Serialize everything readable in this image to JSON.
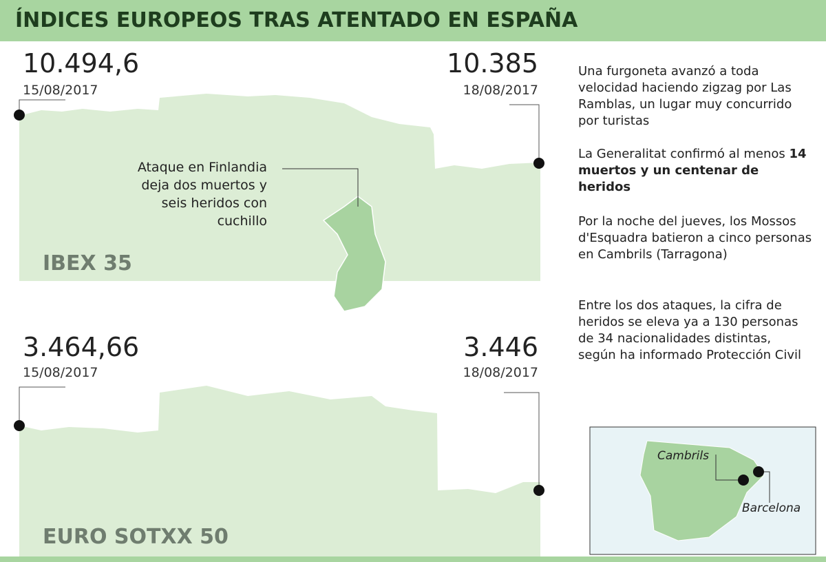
{
  "header": {
    "title": "ÍNDICES EUROPEOS TRAS ATENTADO EN ESPAÑA"
  },
  "panels": [
    {
      "name": "IBEX 35",
      "start_value": "10.494,6",
      "start_date": "15/08/2017",
      "end_value": "10.385",
      "end_date": "18/08/2017"
    },
    {
      "name": "EURO SOTXX 50",
      "start_value": "3.464,66",
      "start_date": "15/08/2017",
      "end_value": "3.446",
      "end_date": "18/08/2017"
    }
  ],
  "annotation": "Ataque en Finlandia deja dos muertos y seis heridos con cuchillo",
  "notes": [
    {
      "text": "Una furgoneta avanzó a toda velocidad haciendo zigzag por Las Ramblas, un lugar muy concurrido por turistas"
    },
    {
      "text": "La Generalitat confirmó al menos ",
      "bold": "14 muertos y un centenar de heridos"
    },
    {
      "text": "Por la noche del jueves, los Mossos d'Esquadra batieron a cinco personas en Cambrils (Tarragona)"
    },
    {
      "text": "Entre los dos ataques, la cifra de heridos se eleva ya a 130 personas de 34 nacionalidades distintas, según ha informado Protección Civil"
    }
  ],
  "map_labels": {
    "cambrils": "Cambrils",
    "barcelona": "Barcelona"
  }
}
